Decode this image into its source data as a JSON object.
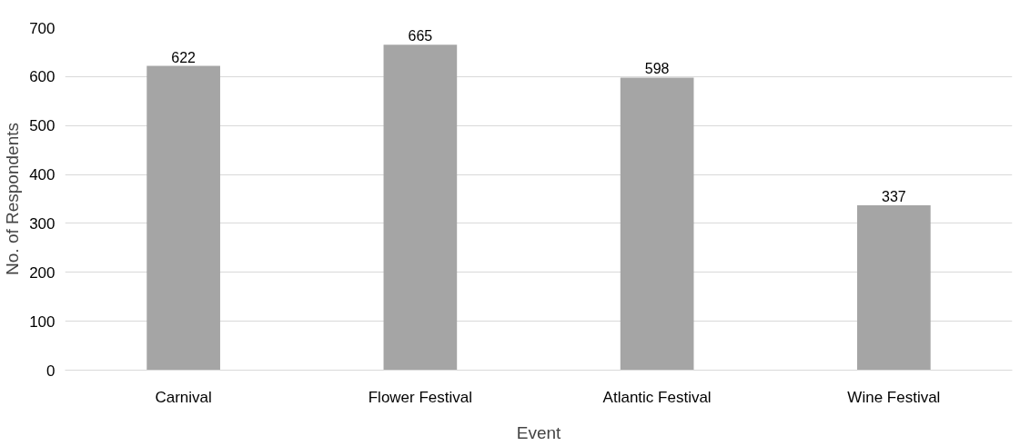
{
  "chart_data": {
    "type": "bar",
    "xlabel": "Event",
    "ylabel": "No. of Respondents",
    "categories": [
      "Carnival",
      "Flower Festival",
      "Atlantic Festival",
      "Wine Festival"
    ],
    "values": [
      622,
      665,
      598,
      337
    ],
    "color": "#a5a5a5",
    "ylim": [
      0,
      700
    ],
    "yticks": [
      0,
      100,
      200,
      300,
      400,
      500,
      600,
      700
    ],
    "grid": "y",
    "data_labels": true
  }
}
